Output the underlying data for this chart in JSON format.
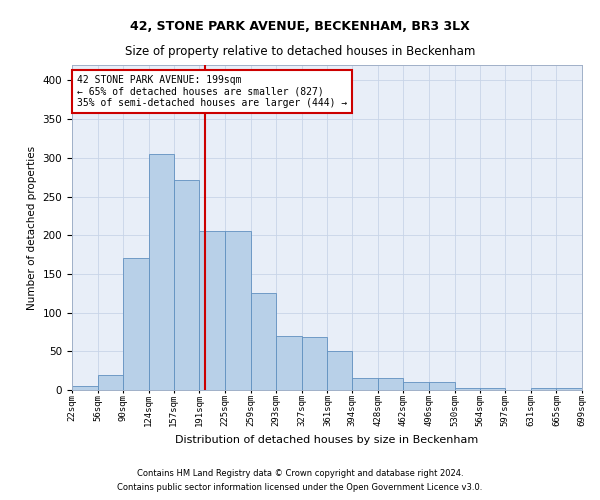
{
  "title1": "42, STONE PARK AVENUE, BECKENHAM, BR3 3LX",
  "title2": "Size of property relative to detached houses in Beckenham",
  "xlabel": "Distribution of detached houses by size in Beckenham",
  "ylabel": "Number of detached properties",
  "annotation_line1": "42 STONE PARK AVENUE: 199sqm",
  "annotation_line2": "← 65% of detached houses are smaller (827)",
  "annotation_line3": "35% of semi-detached houses are larger (444) →",
  "footer1": "Contains HM Land Registry data © Crown copyright and database right 2024.",
  "footer2": "Contains public sector information licensed under the Open Government Licence v3.0.",
  "bar_color": "#b8d0e8",
  "bar_edge_color": "#6090c0",
  "grid_color": "#c8d4e8",
  "bg_color": "#e8eef8",
  "vline_color": "#cc0000",
  "vline_x": 199,
  "bin_edges": [
    22,
    56,
    90,
    124,
    157,
    191,
    225,
    259,
    293,
    327,
    361,
    394,
    428,
    462,
    496,
    530,
    564,
    597,
    631,
    665,
    699
  ],
  "bar_heights": [
    5,
    20,
    170,
    305,
    272,
    205,
    205,
    125,
    70,
    68,
    50,
    15,
    15,
    10,
    10,
    3,
    3,
    0,
    3,
    3
  ],
  "ylim": [
    0,
    420
  ],
  "yticks": [
    0,
    50,
    100,
    150,
    200,
    250,
    300,
    350,
    400
  ],
  "annotation_box_color": "#ffffff",
  "annotation_box_edge": "#cc0000",
  "title1_fontsize": 9,
  "title2_fontsize": 8.5
}
